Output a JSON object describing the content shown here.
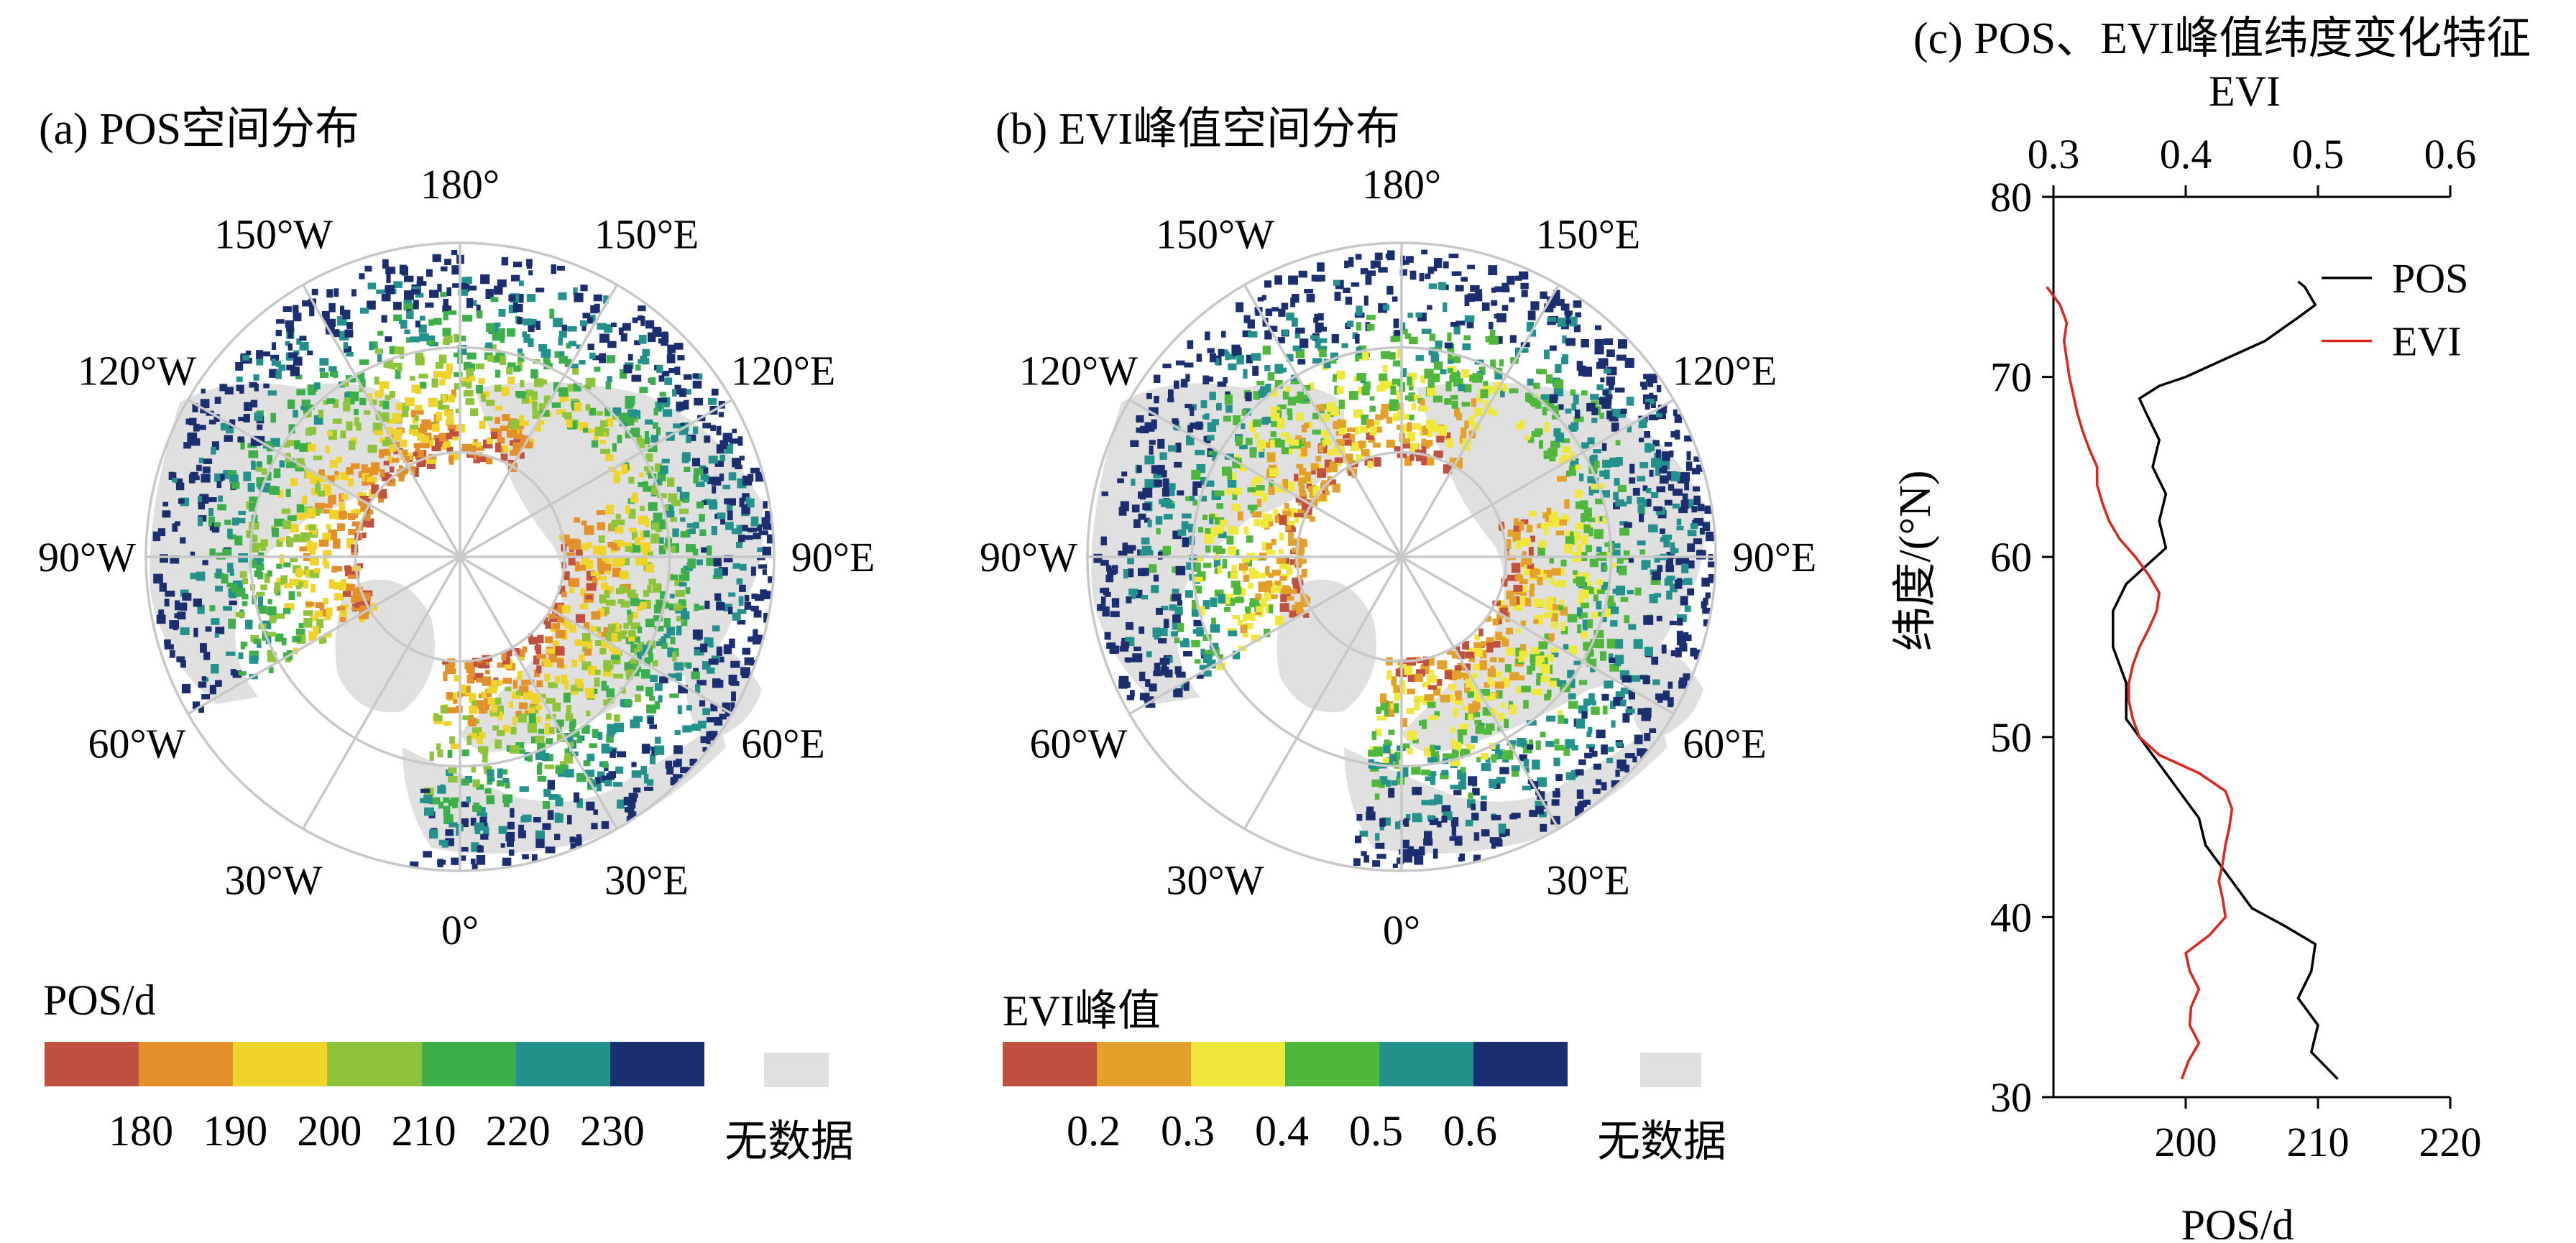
{
  "panel_a": {
    "title": "(a) POS空间分布",
    "lon_labels": [
      "180°",
      "150°E",
      "120°E",
      "90°E",
      "60°E",
      "30°E",
      "0°",
      "30°W",
      "60°W",
      "90°W",
      "120°W",
      "150°W"
    ],
    "colorbar": {
      "title": "POS/d",
      "ticks": [
        "180",
        "190",
        "200",
        "210",
        "220",
        "230"
      ],
      "colors": [
        "#c0513f",
        "#e3902a",
        "#efd22a",
        "#8dc43a",
        "#3daf4a",
        "#23918c",
        "#1b2f70"
      ],
      "nodata_label": "无数据",
      "nodata_color": "#e0e0e0"
    }
  },
  "panel_b": {
    "title": "(b) EVI峰值空间分布",
    "lon_labels": [
      "180°",
      "150°E",
      "120°E",
      "90°E",
      "60°E",
      "30°E",
      "0°",
      "30°W",
      "60°W",
      "90°W",
      "120°W",
      "150°W"
    ],
    "colorbar": {
      "title": "EVI峰值",
      "ticks": [
        "0.2",
        "0.3",
        "0.4",
        "0.5",
        "0.6"
      ],
      "colors": [
        "#c0513f",
        "#e3a02a",
        "#efe83a",
        "#4fb83c",
        "#23918c",
        "#1b2f70"
      ],
      "nodata_label": "无数据",
      "nodata_color": "#e0e0e0"
    }
  },
  "panel_c": {
    "title": "(c) POS、EVI峰值纬度变化特征",
    "top_axis_label": "EVI",
    "bottom_axis_label": "POS/d",
    "y_axis_label": "纬度/(°N)",
    "legend": [
      "POS",
      "EVI"
    ],
    "colors": {
      "POS": "#000000",
      "EVI": "#e0241b"
    }
  },
  "chart_data": {
    "type": "line",
    "title": "(c) POS、EVI峰值纬度变化特征",
    "ylabel": "纬度/(°N)",
    "ylim": [
      30,
      80
    ],
    "y_ticks": [
      30,
      40,
      50,
      60,
      70,
      80
    ],
    "x_bottom": {
      "label": "POS/d",
      "lim": [
        190,
        220
      ],
      "ticks": [
        200,
        210,
        220
      ]
    },
    "x_top": {
      "label": "EVI",
      "lim": [
        0.3,
        0.6
      ],
      "ticks": [
        "0.3",
        "0.4",
        "0.5",
        "0.6"
      ]
    },
    "legend_position": "top-right",
    "series": [
      {
        "name": "POS",
        "axis": "bottom",
        "points": [
          [
            211.5,
            31
          ],
          [
            209.5,
            32.5
          ],
          [
            210,
            34
          ],
          [
            208.5,
            35.5
          ],
          [
            209.5,
            37
          ],
          [
            209.8,
            38.5
          ],
          [
            207.5,
            39.5
          ],
          [
            205,
            40.5
          ],
          [
            203.5,
            42
          ],
          [
            201.5,
            44
          ],
          [
            201,
            45.5
          ],
          [
            199.5,
            47
          ],
          [
            198,
            48.5
          ],
          [
            196.5,
            50
          ],
          [
            195.5,
            51
          ],
          [
            195.5,
            53
          ],
          [
            194.5,
            55
          ],
          [
            194.5,
            57
          ],
          [
            195.5,
            58.5
          ],
          [
            197,
            59.5
          ],
          [
            198.5,
            60.5
          ],
          [
            198,
            62
          ],
          [
            198.5,
            63.5
          ],
          [
            197.5,
            65
          ],
          [
            198,
            66.5
          ],
          [
            197,
            68
          ],
          [
            196.5,
            68.8
          ],
          [
            198,
            69.5
          ],
          [
            200,
            70
          ],
          [
            203,
            71
          ],
          [
            206,
            72
          ],
          [
            208.5,
            73.3
          ],
          [
            209.8,
            74
          ],
          [
            209,
            75
          ],
          [
            208.5,
            75.3
          ]
        ]
      },
      {
        "name": "EVI",
        "axis": "top",
        "points": [
          [
            0.397,
            31
          ],
          [
            0.402,
            32
          ],
          [
            0.41,
            33
          ],
          [
            0.403,
            34
          ],
          [
            0.404,
            35
          ],
          [
            0.41,
            36
          ],
          [
            0.403,
            37
          ],
          [
            0.4,
            38
          ],
          [
            0.418,
            39
          ],
          [
            0.43,
            40
          ],
          [
            0.428,
            41
          ],
          [
            0.425,
            42
          ],
          [
            0.428,
            43
          ],
          [
            0.43,
            44
          ],
          [
            0.433,
            45
          ],
          [
            0.435,
            46
          ],
          [
            0.43,
            47
          ],
          [
            0.41,
            48
          ],
          [
            0.38,
            49
          ],
          [
            0.365,
            50
          ],
          [
            0.36,
            51
          ],
          [
            0.357,
            52
          ],
          [
            0.357,
            53
          ],
          [
            0.36,
            54
          ],
          [
            0.365,
            55
          ],
          [
            0.372,
            56
          ],
          [
            0.378,
            57
          ],
          [
            0.38,
            58
          ],
          [
            0.372,
            59
          ],
          [
            0.362,
            60
          ],
          [
            0.35,
            61
          ],
          [
            0.342,
            62
          ],
          [
            0.337,
            63
          ],
          [
            0.333,
            64
          ],
          [
            0.333,
            65
          ],
          [
            0.327,
            66
          ],
          [
            0.322,
            67
          ],
          [
            0.318,
            68
          ],
          [
            0.315,
            69
          ],
          [
            0.312,
            70
          ],
          [
            0.31,
            71
          ],
          [
            0.308,
            72
          ],
          [
            0.31,
            73
          ],
          [
            0.305,
            74
          ],
          [
            0.295,
            75
          ]
        ]
      }
    ]
  }
}
